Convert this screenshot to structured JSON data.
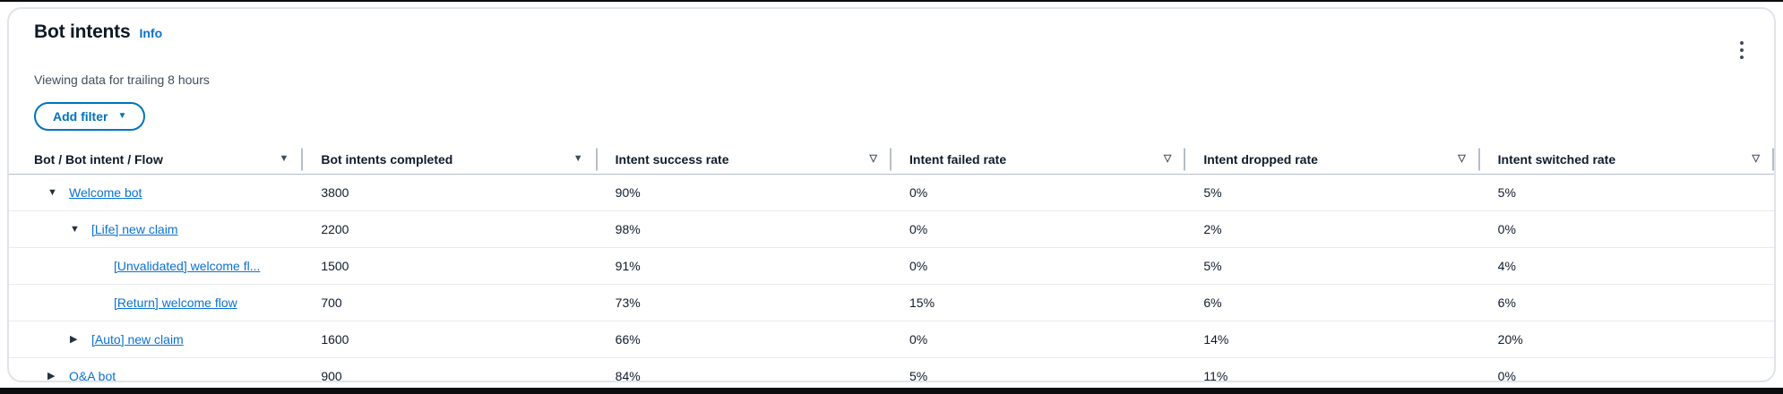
{
  "panel": {
    "title": "Bot intents",
    "info_label": "Info",
    "subtitle": "Viewing data for trailing 8 hours",
    "add_filter_label": "Add filter"
  },
  "colors": {
    "link": "#0972d3",
    "button_accent": "#0073bb",
    "text": "#0f1b2a",
    "muted": "#414d5c",
    "border": "#e9ebed",
    "header_border": "#b6bec9"
  },
  "icons": {
    "kebab": "vertical-ellipsis-icon",
    "filter_filled": "filter-triangle-filled-icon",
    "filter_outline": "filter-triangle-outline-icon",
    "expand_open": "triangle-down-icon",
    "expand_closed": "triangle-right-icon"
  },
  "table": {
    "columns": [
      {
        "label": "Bot / Bot intent / Flow",
        "filter_icon": "filled"
      },
      {
        "label": "Bot intents completed",
        "filter_icon": "filled"
      },
      {
        "label": "Intent success rate",
        "filter_icon": "outline"
      },
      {
        "label": "Intent failed rate",
        "filter_icon": "outline"
      },
      {
        "label": "Intent dropped rate",
        "filter_icon": "outline"
      },
      {
        "label": "Intent switched rate",
        "filter_icon": "outline"
      }
    ],
    "rows": [
      {
        "name": "Welcome bot",
        "level": 1,
        "expand": "expanded",
        "completed": "3800",
        "success": "90%",
        "failed": "0%",
        "dropped": "5%",
        "switched": "5%"
      },
      {
        "name": "[Life] new claim",
        "level": 2,
        "expand": "expanded",
        "completed": "2200",
        "success": "98%",
        "failed": "0%",
        "dropped": "2%",
        "switched": "0%"
      },
      {
        "name": "[Unvalidated] welcome fl...",
        "level": 3,
        "expand": "none",
        "completed": "1500",
        "success": "91%",
        "failed": "0%",
        "dropped": "5%",
        "switched": "4%"
      },
      {
        "name": "[Return] welcome flow",
        "level": 3,
        "expand": "none",
        "completed": "700",
        "success": "73%",
        "failed": "15%",
        "dropped": "6%",
        "switched": "6%"
      },
      {
        "name": "[Auto] new claim",
        "level": 2,
        "expand": "collapsed",
        "completed": "1600",
        "success": "66%",
        "failed": "0%",
        "dropped": "14%",
        "switched": "20%"
      },
      {
        "name": "Q&A bot",
        "level": 1,
        "expand": "collapsed",
        "completed": "900",
        "success": "84%",
        "failed": "5%",
        "dropped": "11%",
        "switched": "0%"
      }
    ]
  }
}
